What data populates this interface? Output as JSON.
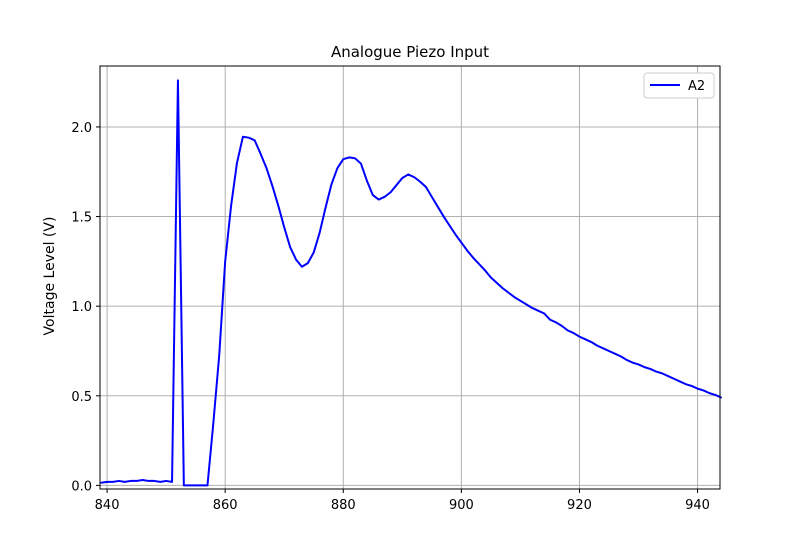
{
  "chart_data": {
    "type": "line",
    "title": "Analogue Piezo Input",
    "xlabel": "",
    "ylabel": "Voltage Level (V)",
    "xlim": [
      838.8,
      943.8
    ],
    "ylim": [
      -0.02,
      2.34
    ],
    "xticks": [
      840,
      860,
      880,
      900,
      920,
      940
    ],
    "yticks": [
      0.0,
      0.5,
      1.0,
      1.5,
      2.0
    ],
    "xtick_labels": [
      "840",
      "860",
      "880",
      "900",
      "920",
      "940"
    ],
    "ytick_labels": [
      "0.0",
      "0.5",
      "1.0",
      "1.5",
      "2.0"
    ],
    "grid": true,
    "legend_position": "top-right",
    "series": [
      {
        "name": "A2",
        "color": "#0000ff",
        "x": [
          839,
          840,
          841,
          842,
          843,
          844,
          845,
          846,
          847,
          848,
          849,
          850,
          851,
          852,
          853,
          854,
          855,
          856,
          857,
          858,
          859,
          860,
          861,
          862,
          863,
          864,
          865,
          866,
          867,
          868,
          869,
          870,
          871,
          872,
          873,
          874,
          875,
          876,
          877,
          878,
          879,
          880,
          881,
          882,
          883,
          884,
          885,
          886,
          887,
          888,
          889,
          890,
          891,
          892,
          893,
          894,
          895,
          896,
          897,
          898,
          899,
          900,
          901,
          902,
          903,
          904,
          905,
          906,
          907,
          908,
          909,
          910,
          911,
          912,
          913,
          914,
          915,
          916,
          917,
          918,
          919,
          920,
          921,
          922,
          923,
          924,
          925,
          926,
          927,
          928,
          929,
          930,
          931,
          932,
          933,
          934,
          935,
          936,
          937,
          938,
          939,
          940,
          941,
          942,
          943,
          944
        ],
        "y": [
          0.015,
          0.02,
          0.02,
          0.025,
          0.02,
          0.025,
          0.025,
          0.03,
          0.025,
          0.025,
          0.02,
          0.025,
          0.02,
          2.26,
          0.0,
          0.0,
          0.0,
          0.0,
          0.0,
          0.35,
          0.73,
          1.25,
          1.56,
          1.8,
          1.945,
          1.94,
          1.925,
          1.85,
          1.77,
          1.67,
          1.56,
          1.44,
          1.33,
          1.26,
          1.22,
          1.24,
          1.3,
          1.41,
          1.55,
          1.68,
          1.77,
          1.82,
          1.83,
          1.825,
          1.795,
          1.7,
          1.62,
          1.595,
          1.61,
          1.635,
          1.675,
          1.715,
          1.735,
          1.72,
          1.695,
          1.665,
          1.61,
          1.555,
          1.5,
          1.45,
          1.4,
          1.355,
          1.31,
          1.27,
          1.235,
          1.2,
          1.16,
          1.13,
          1.1,
          1.075,
          1.05,
          1.03,
          1.01,
          0.99,
          0.975,
          0.96,
          0.925,
          0.91,
          0.89,
          0.865,
          0.85,
          0.83,
          0.815,
          0.8,
          0.78,
          0.765,
          0.75,
          0.735,
          0.72,
          0.7,
          0.685,
          0.675,
          0.66,
          0.65,
          0.635,
          0.625,
          0.61,
          0.595,
          0.58,
          0.565,
          0.555,
          0.54,
          0.53,
          0.515,
          0.505,
          0.49
        ]
      }
    ]
  }
}
